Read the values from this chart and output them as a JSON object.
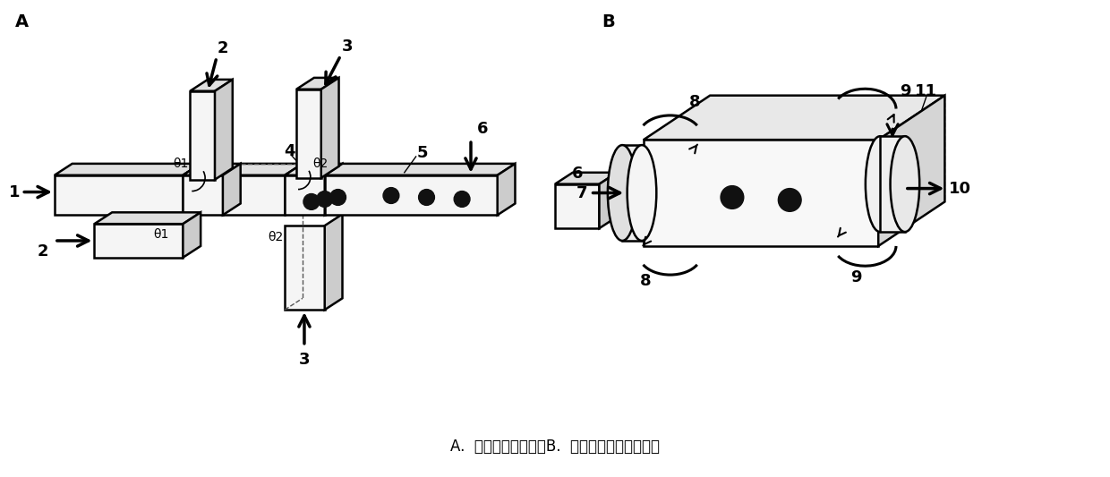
{
  "caption": "A.  共流微尺度通道；B.  流动聚焦微尺度通道。",
  "label_A": "A",
  "label_B": "B",
  "bg_color": "#ffffff",
  "lc": "#000000",
  "dc": "#555555",
  "fc_light": "#f5f5f5",
  "fc_mid": "#e0e0e0",
  "fc_dark": "#cccccc"
}
